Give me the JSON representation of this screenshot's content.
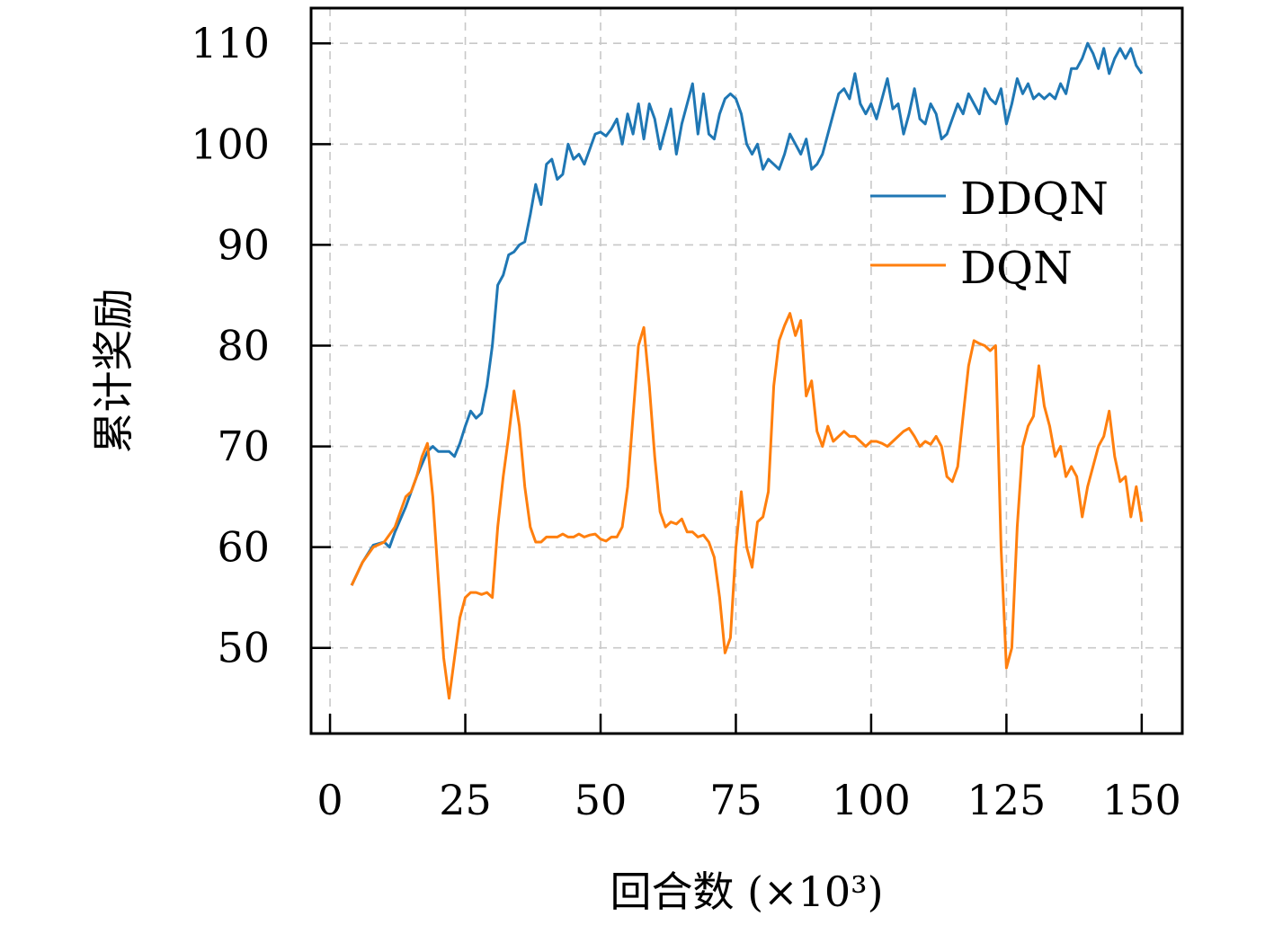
{
  "chart_data": {
    "type": "line",
    "title": "",
    "xlabel": "回合数 (×10³)",
    "ylabel": "累计奖励",
    "xlim": [
      -3.5,
      157.5
    ],
    "ylim": [
      41.5,
      113.5
    ],
    "xticks": [
      0,
      25,
      50,
      75,
      100,
      125,
      150
    ],
    "yticks": [
      50,
      60,
      70,
      80,
      90,
      100,
      110
    ],
    "grid": true,
    "legend_position": "upper-right",
    "series": [
      {
        "name": "DDQN",
        "color": "#1f77b4",
        "points": [
          [
            4,
            56.2
          ],
          [
            6,
            58.5
          ],
          [
            8,
            60.2
          ],
          [
            10,
            60.5
          ],
          [
            11,
            60
          ],
          [
            12,
            61.5
          ],
          [
            14,
            64
          ],
          [
            16,
            67
          ],
          [
            18,
            69.5
          ],
          [
            19,
            70
          ],
          [
            20,
            69.5
          ],
          [
            22,
            69.5
          ],
          [
            23,
            69
          ],
          [
            24,
            70.3
          ],
          [
            25,
            72
          ],
          [
            26,
            73.5
          ],
          [
            27,
            72.8
          ],
          [
            28,
            73.3
          ],
          [
            29,
            76
          ],
          [
            30,
            80
          ],
          [
            31,
            86
          ],
          [
            32,
            87
          ],
          [
            33,
            89
          ],
          [
            34,
            89.3
          ],
          [
            35,
            90
          ],
          [
            36,
            90.3
          ],
          [
            37,
            93
          ],
          [
            38,
            96
          ],
          [
            39,
            94
          ],
          [
            40,
            98
          ],
          [
            41,
            98.5
          ],
          [
            42,
            96.5
          ],
          [
            43,
            97
          ],
          [
            44,
            100
          ],
          [
            45,
            98.5
          ],
          [
            46,
            99
          ],
          [
            47,
            98
          ],
          [
            48,
            99.5
          ],
          [
            49,
            101
          ],
          [
            50,
            101.2
          ],
          [
            51,
            100.8
          ],
          [
            52,
            101.5
          ],
          [
            53,
            102.5
          ],
          [
            54,
            100
          ],
          [
            55,
            103
          ],
          [
            56,
            101
          ],
          [
            57,
            104
          ],
          [
            58,
            100.5
          ],
          [
            59,
            104
          ],
          [
            60,
            102.5
          ],
          [
            61,
            99.5
          ],
          [
            62,
            101.5
          ],
          [
            63,
            103.5
          ],
          [
            64,
            99
          ],
          [
            65,
            102
          ],
          [
            66,
            104
          ],
          [
            67,
            106
          ],
          [
            68,
            101
          ],
          [
            69,
            105
          ],
          [
            70,
            101
          ],
          [
            71,
            100.5
          ],
          [
            72,
            103
          ],
          [
            73,
            104.5
          ],
          [
            74,
            105
          ],
          [
            75,
            104.5
          ],
          [
            76,
            103
          ],
          [
            77,
            100
          ],
          [
            78,
            99
          ],
          [
            79,
            100
          ],
          [
            80,
            97.5
          ],
          [
            81,
            98.5
          ],
          [
            82,
            98
          ],
          [
            83,
            97.5
          ],
          [
            84,
            99
          ],
          [
            85,
            101
          ],
          [
            86,
            100
          ],
          [
            87,
            99
          ],
          [
            88,
            100.5
          ],
          [
            89,
            97.5
          ],
          [
            90,
            98
          ],
          [
            91,
            99
          ],
          [
            92,
            101
          ],
          [
            93,
            103
          ],
          [
            94,
            105
          ],
          [
            95,
            105.5
          ],
          [
            96,
            104.5
          ],
          [
            97,
            107
          ],
          [
            98,
            104
          ],
          [
            99,
            103
          ],
          [
            100,
            104
          ],
          [
            101,
            102.5
          ],
          [
            102,
            104.5
          ],
          [
            103,
            106.5
          ],
          [
            104,
            103.5
          ],
          [
            105,
            104
          ],
          [
            106,
            101
          ],
          [
            107,
            103
          ],
          [
            108,
            105.5
          ],
          [
            109,
            102.5
          ],
          [
            110,
            102
          ],
          [
            111,
            104
          ],
          [
            112,
            103
          ],
          [
            113,
            100.5
          ],
          [
            114,
            101
          ],
          [
            115,
            102.5
          ],
          [
            116,
            104
          ],
          [
            117,
            103
          ],
          [
            118,
            105
          ],
          [
            119,
            104
          ],
          [
            120,
            103
          ],
          [
            121,
            105.5
          ],
          [
            122,
            104.5
          ],
          [
            123,
            104
          ],
          [
            124,
            105.5
          ],
          [
            125,
            102
          ],
          [
            126,
            104
          ],
          [
            127,
            106.5
          ],
          [
            128,
            105
          ],
          [
            129,
            106
          ],
          [
            130,
            104.5
          ],
          [
            131,
            105
          ],
          [
            132,
            104.5
          ],
          [
            133,
            105
          ],
          [
            134,
            104.5
          ],
          [
            135,
            106
          ],
          [
            136,
            105
          ],
          [
            137,
            107.5
          ],
          [
            138,
            107.5
          ],
          [
            139,
            108.5
          ],
          [
            140,
            110
          ],
          [
            141,
            109
          ],
          [
            142,
            107.5
          ],
          [
            143,
            109.5
          ],
          [
            144,
            107
          ],
          [
            145,
            108.5
          ],
          [
            146,
            109.5
          ],
          [
            147,
            108.5
          ],
          [
            148,
            109.5
          ],
          [
            149,
            107.8
          ],
          [
            150,
            107
          ]
        ]
      },
      {
        "name": "DQN",
        "color": "#ff7f0e",
        "points": [
          [
            4,
            56.2
          ],
          [
            6,
            58.5
          ],
          [
            8,
            60
          ],
          [
            10,
            60.5
          ],
          [
            12,
            62
          ],
          [
            13,
            63.5
          ],
          [
            14,
            65
          ],
          [
            15,
            65.5
          ],
          [
            16,
            67
          ],
          [
            17,
            69
          ],
          [
            18,
            70.3
          ],
          [
            19,
            65
          ],
          [
            20,
            57
          ],
          [
            21,
            49
          ],
          [
            22,
            45
          ],
          [
            23,
            49
          ],
          [
            24,
            53
          ],
          [
            25,
            55
          ],
          [
            26,
            55.5
          ],
          [
            27,
            55.5
          ],
          [
            28,
            55.3
          ],
          [
            29,
            55.5
          ],
          [
            30,
            55
          ],
          [
            31,
            62
          ],
          [
            32,
            67
          ],
          [
            33,
            71
          ],
          [
            34,
            75.5
          ],
          [
            35,
            72
          ],
          [
            36,
            66
          ],
          [
            37,
            62
          ],
          [
            38,
            60.5
          ],
          [
            39,
            60.5
          ],
          [
            40,
            61
          ],
          [
            41,
            61
          ],
          [
            42,
            61
          ],
          [
            43,
            61.3
          ],
          [
            44,
            61
          ],
          [
            45,
            61
          ],
          [
            46,
            61.3
          ],
          [
            47,
            61
          ],
          [
            48,
            61.2
          ],
          [
            49,
            61.3
          ],
          [
            50,
            60.8
          ],
          [
            51,
            60.6
          ],
          [
            52,
            61
          ],
          [
            53,
            61
          ],
          [
            54,
            62
          ],
          [
            55,
            66
          ],
          [
            56,
            73
          ],
          [
            57,
            80
          ],
          [
            58,
            81.8
          ],
          [
            59,
            76
          ],
          [
            60,
            69
          ],
          [
            61,
            63.5
          ],
          [
            62,
            62
          ],
          [
            63,
            62.5
          ],
          [
            64,
            62.3
          ],
          [
            65,
            62.8
          ],
          [
            66,
            61.5
          ],
          [
            67,
            61.5
          ],
          [
            68,
            61
          ],
          [
            69,
            61.2
          ],
          [
            70,
            60.5
          ],
          [
            71,
            59
          ],
          [
            72,
            55
          ],
          [
            73,
            49.5
          ],
          [
            74,
            51
          ],
          [
            75,
            60
          ],
          [
            76,
            65.5
          ],
          [
            77,
            60
          ],
          [
            78,
            58
          ],
          [
            79,
            62.5
          ],
          [
            80,
            63
          ],
          [
            81,
            65.5
          ],
          [
            82,
            76
          ],
          [
            83,
            80.5
          ],
          [
            84,
            82
          ],
          [
            85,
            83.2
          ],
          [
            86,
            81
          ],
          [
            87,
            82.5
          ],
          [
            88,
            75
          ],
          [
            89,
            76.5
          ],
          [
            90,
            71.5
          ],
          [
            91,
            70
          ],
          [
            92,
            72
          ],
          [
            93,
            70.5
          ],
          [
            94,
            71
          ],
          [
            95,
            71.5
          ],
          [
            96,
            71
          ],
          [
            97,
            71
          ],
          [
            98,
            70.5
          ],
          [
            99,
            70
          ],
          [
            100,
            70.5
          ],
          [
            101,
            70.5
          ],
          [
            102,
            70.3
          ],
          [
            103,
            70
          ],
          [
            104,
            70.5
          ],
          [
            105,
            71
          ],
          [
            106,
            71.5
          ],
          [
            107,
            71.8
          ],
          [
            108,
            71
          ],
          [
            109,
            70
          ],
          [
            110,
            70.5
          ],
          [
            111,
            70.2
          ],
          [
            112,
            71
          ],
          [
            113,
            70
          ],
          [
            114,
            67
          ],
          [
            115,
            66.5
          ],
          [
            116,
            68
          ],
          [
            117,
            73
          ],
          [
            118,
            78
          ],
          [
            119,
            80.5
          ],
          [
            120,
            80.2
          ],
          [
            121,
            80
          ],
          [
            122,
            79.5
          ],
          [
            123,
            80
          ],
          [
            124,
            60
          ],
          [
            125,
            48
          ],
          [
            126,
            50
          ],
          [
            127,
            62
          ],
          [
            128,
            70
          ],
          [
            129,
            72
          ],
          [
            130,
            73
          ],
          [
            131,
            78
          ],
          [
            132,
            74
          ],
          [
            133,
            72
          ],
          [
            134,
            69
          ],
          [
            135,
            70
          ],
          [
            136,
            67
          ],
          [
            137,
            68
          ],
          [
            138,
            67
          ],
          [
            139,
            63
          ],
          [
            140,
            66
          ],
          [
            141,
            68
          ],
          [
            142,
            70
          ],
          [
            143,
            71
          ],
          [
            144,
            73.5
          ],
          [
            145,
            69
          ],
          [
            146,
            66.5
          ],
          [
            147,
            67
          ],
          [
            148,
            63
          ],
          [
            149,
            66
          ],
          [
            150,
            62.5
          ]
        ]
      }
    ]
  }
}
